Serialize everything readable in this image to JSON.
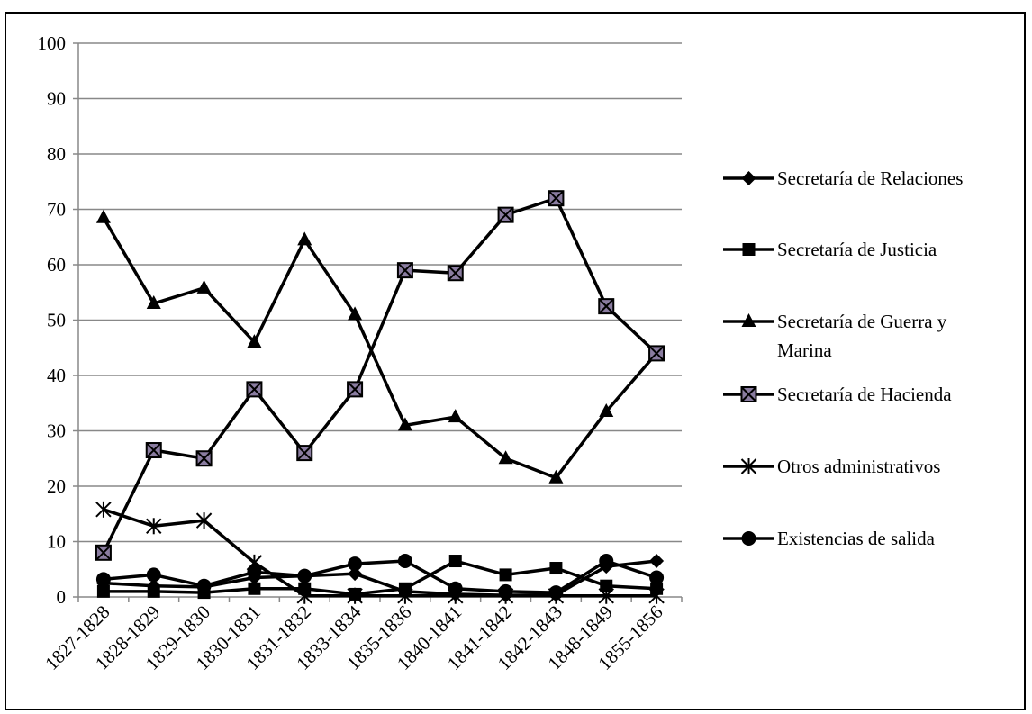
{
  "chart_data": {
    "type": "line",
    "title": "",
    "xlabel": "",
    "ylabel": "",
    "ylim": [
      0,
      100
    ],
    "yticks": [
      0,
      10,
      20,
      30,
      40,
      50,
      60,
      70,
      80,
      90,
      100
    ],
    "grid": true,
    "legend_position": "right",
    "categories": [
      "1827-1828",
      "1828-1829",
      "1829-1830",
      "1830-1831",
      "1831-1832",
      "1833-1834",
      "1835-1836",
      "1840-1841",
      "1841-1842",
      "1842-1843",
      "1848-1849",
      "1855-1856"
    ],
    "series": [
      {
        "name": "Secretaría de Relaciones",
        "marker": "diamond",
        "values": [
          2.5,
          2.0,
          1.8,
          3.5,
          3.8,
          4.2,
          1.0,
          0.5,
          0.3,
          0.4,
          5.5,
          6.5
        ]
      },
      {
        "name": "Secretaría de Justicia",
        "marker": "square",
        "values": [
          1.0,
          1.0,
          0.8,
          1.5,
          1.5,
          0.5,
          1.5,
          6.5,
          4.0,
          5.2,
          2.0,
          1.5
        ]
      },
      {
        "name": "Secretaría de Guerra y Marina",
        "marker": "triangle",
        "values": [
          68.5,
          53.0,
          55.8,
          46.0,
          64.5,
          51.0,
          31.0,
          32.5,
          25.0,
          21.5,
          33.5,
          44.0
        ]
      },
      {
        "name": "Secretaría de Hacienda",
        "marker": "boxx",
        "values": [
          8.0,
          26.5,
          25.0,
          37.5,
          26.0,
          37.5,
          59.0,
          58.5,
          69.0,
          72.0,
          52.5,
          44.0
        ]
      },
      {
        "name": "Otros administrativos",
        "marker": "asterisk",
        "values": [
          15.8,
          12.8,
          13.8,
          6.2,
          0.2,
          0.2,
          0.2,
          0.2,
          0.2,
          0.2,
          0.2,
          0.2
        ]
      },
      {
        "name": "Existencias de salida",
        "marker": "circle",
        "values": [
          3.2,
          4.0,
          2.0,
          4.5,
          3.8,
          6.0,
          6.5,
          1.5,
          1.0,
          0.8,
          6.5,
          3.5
        ]
      }
    ],
    "colors": {
      "line": "#000000",
      "grid": "#888888",
      "hacienda_fill": "#8a7ca0"
    }
  }
}
